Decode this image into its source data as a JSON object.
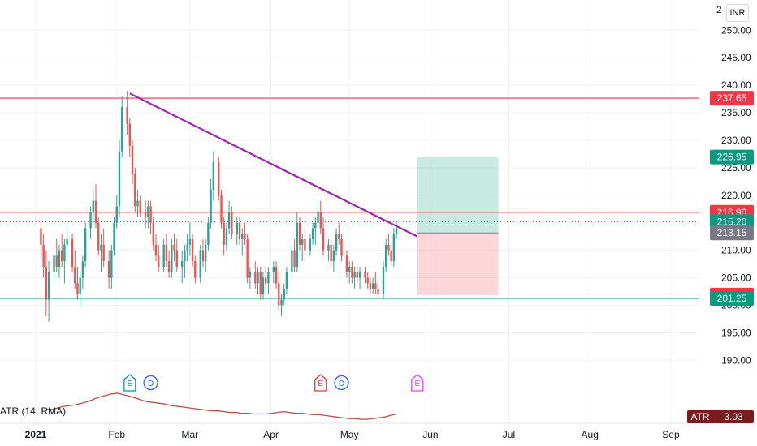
{
  "currency": "INR",
  "axis_top_partial": "2",
  "axis_top_partial_right": "0",
  "chart_data": {
    "type": "candlestick",
    "ylim": [
      186.5,
      255.5
    ],
    "y_ticks": [
      190,
      195,
      200,
      205,
      210,
      215,
      220,
      225,
      230,
      235,
      240,
      245,
      250
    ],
    "y_tick_labels": [
      "190.00",
      "195.00",
      "200.00",
      "205.00",
      "210.00",
      "215.00",
      "220.00",
      "225.00",
      "230.00",
      "235.00",
      "240.00",
      "245.00",
      "250.00"
    ],
    "x_labels": [
      {
        "label": "2021",
        "day": 0,
        "bold": true
      },
      {
        "label": "Feb",
        "day": 31
      },
      {
        "label": "Mar",
        "day": 59
      },
      {
        "label": "Apr",
        "day": 90
      },
      {
        "label": "May",
        "day": 120
      },
      {
        "label": "Jun",
        "day": 151
      },
      {
        "label": "Jul",
        "day": 181
      },
      {
        "label": "Aug",
        "day": 212
      },
      {
        "label": "Sep",
        "day": 243
      }
    ],
    "candles": [
      [
        2,
        214,
        216,
        209,
        211
      ],
      [
        3,
        211,
        213,
        205,
        207
      ],
      [
        4,
        207,
        210,
        198,
        201
      ],
      [
        5,
        201,
        208,
        197,
        206
      ],
      [
        7,
        206,
        210,
        204,
        209
      ],
      [
        8,
        209,
        212,
        206,
        207
      ],
      [
        9,
        207,
        211,
        205,
        210
      ],
      [
        10,
        210,
        213,
        207,
        208
      ],
      [
        11,
        208,
        212,
        204,
        211
      ],
      [
        12,
        211,
        214,
        209,
        212
      ],
      [
        14,
        212,
        213,
        206,
        207
      ],
      [
        15,
        207,
        210,
        203,
        204
      ],
      [
        16,
        204,
        207,
        201,
        202
      ],
      [
        17,
        202,
        206,
        200,
        205
      ],
      [
        18,
        205,
        209,
        203,
        208
      ],
      [
        19,
        208,
        215,
        207,
        214
      ],
      [
        21,
        214,
        218,
        212,
        217
      ],
      [
        22,
        217,
        221,
        215,
        219
      ],
      [
        23,
        219,
        222,
        214,
        215
      ],
      [
        24,
        215,
        216,
        209,
        210
      ],
      [
        25,
        210,
        213,
        206,
        211
      ],
      [
        26,
        211,
        214,
        207,
        208
      ],
      [
        28,
        208,
        210,
        203,
        205
      ],
      [
        29,
        205,
        211,
        203,
        210
      ],
      [
        30,
        210,
        216,
        209,
        215
      ],
      [
        31,
        215,
        220,
        214,
        218
      ],
      [
        32,
        218,
        230,
        216,
        228
      ],
      [
        33,
        228,
        238,
        227,
        236
      ],
      [
        35,
        236,
        239,
        231,
        233
      ],
      [
        36,
        233,
        234,
        227,
        229
      ],
      [
        37,
        229,
        230,
        222,
        224
      ],
      [
        38,
        224,
        225,
        217,
        218
      ],
      [
        39,
        218,
        221,
        216,
        219
      ],
      [
        40,
        219,
        220,
        216,
        217
      ],
      [
        42,
        217,
        219,
        214,
        216
      ],
      [
        43,
        216,
        219,
        214,
        218
      ],
      [
        44,
        218,
        219,
        213,
        215
      ],
      [
        45,
        215,
        216,
        210,
        211
      ],
      [
        46,
        211,
        213,
        208,
        209
      ],
      [
        47,
        209,
        211,
        206,
        207
      ],
      [
        49,
        207,
        212,
        206,
        211
      ],
      [
        50,
        211,
        213,
        207,
        208
      ],
      [
        51,
        208,
        210,
        205,
        206
      ],
      [
        52,
        206,
        212,
        205,
        211
      ],
      [
        53,
        211,
        213,
        208,
        210
      ],
      [
        54,
        210,
        212,
        206,
        207
      ],
      [
        56,
        207,
        210,
        204,
        208
      ],
      [
        57,
        208,
        211,
        205,
        210
      ],
      [
        58,
        210,
        213,
        208,
        211
      ],
      [
        59,
        211,
        215,
        209,
        212
      ],
      [
        60,
        212,
        213,
        207,
        208
      ],
      [
        61,
        208,
        209,
        204,
        205
      ],
      [
        63,
        205,
        211,
        204,
        210
      ],
      [
        64,
        210,
        212,
        207,
        208
      ],
      [
        65,
        208,
        212,
        206,
        211
      ],
      [
        66,
        211,
        216,
        210,
        215
      ],
      [
        67,
        215,
        223,
        214,
        221
      ],
      [
        68,
        221,
        228,
        219,
        226
      ],
      [
        70,
        226,
        227,
        219,
        220
      ],
      [
        71,
        220,
        221,
        214,
        215
      ],
      [
        72,
        215,
        216,
        209,
        211
      ],
      [
        73,
        211,
        215,
        210,
        214
      ],
      [
        74,
        214,
        219,
        213,
        217
      ],
      [
        75,
        217,
        218,
        212,
        213
      ],
      [
        77,
        213,
        216,
        211,
        215
      ],
      [
        78,
        215,
        216,
        211,
        212
      ],
      [
        79,
        212,
        214,
        209,
        213
      ],
      [
        80,
        213,
        215,
        211,
        212
      ],
      [
        81,
        212,
        213,
        204,
        205
      ],
      [
        82,
        205,
        207,
        203,
        206
      ],
      [
        84,
        206,
        208,
        203,
        204
      ],
      [
        85,
        204,
        207,
        202,
        206
      ],
      [
        86,
        206,
        207,
        201,
        202
      ],
      [
        87,
        202,
        206,
        201,
        205
      ],
      [
        88,
        205,
        207,
        203,
        204
      ],
      [
        89,
        204,
        207,
        202,
        206
      ],
      [
        91,
        206,
        208,
        204,
        207
      ],
      [
        92,
        207,
        208,
        203,
        204
      ],
      [
        93,
        204,
        206,
        199,
        200
      ],
      [
        94,
        200,
        202,
        198,
        201
      ],
      [
        95,
        201,
        204,
        200,
        203
      ],
      [
        96,
        203,
        207,
        202,
        206
      ],
      [
        98,
        206,
        211,
        205,
        210
      ],
      [
        99,
        210,
        212,
        206,
        207
      ],
      [
        100,
        207,
        217,
        206,
        215
      ],
      [
        101,
        215,
        216,
        210,
        211
      ],
      [
        102,
        211,
        213,
        208,
        212
      ],
      [
        103,
        212,
        214,
        209,
        210
      ],
      [
        105,
        210,
        213,
        209,
        212
      ],
      [
        106,
        212,
        215,
        211,
        214
      ],
      [
        107,
        214,
        216,
        211,
        215
      ],
      [
        108,
        215,
        219,
        214,
        217
      ],
      [
        109,
        217,
        219,
        213,
        214
      ],
      [
        110,
        214,
        216,
        209,
        210
      ],
      [
        112,
        210,
        212,
        208,
        211
      ],
      [
        113,
        211,
        212,
        207,
        208
      ],
      [
        114,
        208,
        211,
        206,
        210
      ],
      [
        115,
        210,
        214,
        209,
        213
      ],
      [
        116,
        213,
        215,
        211,
        212
      ],
      [
        117,
        212,
        213,
        208,
        209
      ],
      [
        119,
        209,
        210,
        205,
        206
      ],
      [
        120,
        206,
        208,
        204,
        207
      ],
      [
        121,
        207,
        208,
        204,
        205
      ],
      [
        122,
        205,
        207,
        203,
        206
      ],
      [
        123,
        206,
        207,
        204,
        205
      ],
      [
        124,
        205,
        207,
        203,
        206
      ],
      [
        126,
        206,
        207,
        204,
        205
      ],
      [
        127,
        205,
        206,
        203,
        204
      ],
      [
        128,
        204,
        205,
        202,
        203
      ],
      [
        129,
        203,
        205,
        202,
        204
      ],
      [
        130,
        204,
        206,
        202,
        203
      ],
      [
        131,
        203,
        204,
        201,
        202
      ],
      [
        133,
        202,
        208,
        201,
        207
      ],
      [
        134,
        207,
        212,
        206,
        211
      ],
      [
        135,
        211,
        213,
        209,
        210
      ],
      [
        136,
        210,
        211,
        207,
        208
      ],
      [
        137,
        208,
        214,
        207,
        213
      ],
      [
        138,
        213,
        215,
        212,
        214
      ]
    ],
    "resistance_line": {
      "price": 237.65,
      "label": "237.65",
      "color": "#f23645"
    },
    "resistance_line_2": {
      "price": 216.9,
      "label": "216.90",
      "color": "#f23645"
    },
    "support_line": {
      "price": 201.25,
      "label": "201.25",
      "color": "#089981"
    },
    "current_price": {
      "price": 215.2,
      "label": "215.20",
      "color": "#089981"
    },
    "entry_price": {
      "price": 213.15,
      "label": "213.15",
      "color": "#787b86"
    },
    "target_price": {
      "price": 226.95,
      "label": "226.95",
      "color": "#089981"
    },
    "stop_price": {
      "price": 201.85,
      "label": "201.85",
      "color": "#f23645"
    },
    "trendline": {
      "start": {
        "day": 36,
        "price": 238.5
      },
      "end": {
        "day": 146,
        "price": 212.5
      },
      "color": "#9c27b0"
    },
    "events": [
      {
        "day": 36,
        "letter": "E",
        "kind": "earnings",
        "color": "#089981"
      },
      {
        "day": 44,
        "letter": "D",
        "kind": "dividend",
        "color": "#2962ff"
      },
      {
        "day": 109,
        "letter": "E",
        "kind": "earnings",
        "color": "#f23645"
      },
      {
        "day": 117,
        "letter": "D",
        "kind": "dividend",
        "color": "#2962ff"
      },
      {
        "day": 146,
        "letter": "E",
        "kind": "earnings",
        "color": "#e040fb"
      }
    ],
    "atr": {
      "label": "ATR (14, RMA)",
      "badge_label": "ATR",
      "value": "3.03",
      "values": [
        3.6,
        3.6,
        3.8,
        4.0,
        4.1,
        4.2,
        4.4,
        4.6,
        4.9,
        5.2,
        5.4,
        5.6,
        5.7,
        5.5,
        5.3,
        5.1,
        4.8,
        4.6,
        4.5,
        4.4,
        4.3,
        4.1,
        4.0,
        3.9,
        3.8,
        3.7,
        3.6,
        3.5,
        3.4,
        3.4,
        3.3,
        3.2,
        3.2,
        3.1,
        3.1,
        3.0,
        3.0,
        3.0,
        3.1,
        3.2,
        3.3,
        3.2,
        3.1,
        3.1,
        3.0,
        2.9,
        2.9,
        2.8,
        2.7,
        2.6,
        2.5,
        2.4,
        2.4,
        2.3,
        2.3,
        2.4,
        2.5,
        2.6,
        2.8,
        3.0
      ]
    },
    "colors": {
      "up": "#26a69a",
      "down": "#ef5350",
      "grid": "#f0f3fa",
      "atr_line": "#b2514a",
      "target_zone": "rgba(8,153,129,0.22)",
      "stop_zone": "rgba(242,54,69,0.2)"
    }
  }
}
